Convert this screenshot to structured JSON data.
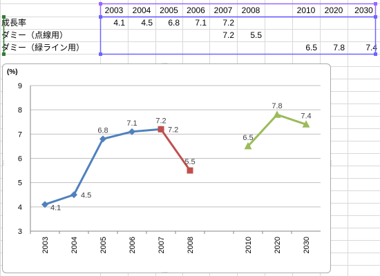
{
  "sheet": {
    "year_headers": [
      "2003",
      "2004",
      "2005",
      "2006",
      "2007",
      "2008",
      "",
      "2010",
      "2020",
      "2030"
    ],
    "rows": [
      {
        "label": "成長率",
        "values": [
          "4.1",
          "4.5",
          "6.8",
          "7.1",
          "7.2",
          "",
          "",
          "",
          "",
          ""
        ]
      },
      {
        "label": "ダミー（点線用）",
        "values": [
          "",
          "",
          "",
          "",
          "7.2",
          "5.5",
          "",
          "",
          "",
          ""
        ]
      },
      {
        "label": "ダミー（緑ライン用）",
        "values": [
          "",
          "",
          "",
          "",
          "",
          "",
          "",
          "6.5",
          "7.8",
          "7.4"
        ]
      }
    ]
  },
  "chart_data": {
    "type": "line",
    "title": "",
    "ylabel": "(%)",
    "ylim": [
      3,
      9
    ],
    "yticks": [
      "3",
      "4",
      "5",
      "6",
      "7",
      "8",
      "9"
    ],
    "categories": [
      "2003",
      "2004",
      "2005",
      "2006",
      "2007",
      "2008",
      "",
      "2010",
      "2020",
      "2030"
    ],
    "grid": true,
    "legend": "none",
    "series": [
      {
        "marker": "diamond",
        "color": "#4f81bd",
        "values": [
          4.1,
          4.5,
          6.8,
          7.1,
          7.2,
          null,
          null,
          null,
          null,
          null
        ]
      },
      {
        "marker": "square",
        "color": "#c0504d",
        "values": [
          null,
          null,
          null,
          null,
          7.2,
          5.5,
          null,
          null,
          null,
          null
        ]
      },
      {
        "marker": "triangle",
        "color": "#9bbb59",
        "values": [
          null,
          null,
          null,
          null,
          null,
          null,
          null,
          6.5,
          7.8,
          7.4
        ]
      }
    ],
    "data_labels": [
      {
        "category_index": 0,
        "text": "4.1",
        "placement": "below-right"
      },
      {
        "category_index": 1,
        "text": "4.5",
        "placement": "right"
      },
      {
        "category_index": 2,
        "text": "6.8",
        "placement": "above"
      },
      {
        "category_index": 3,
        "text": "7.1",
        "placement": "above"
      },
      {
        "category_index": 4,
        "text": "7.2",
        "placement": "above"
      },
      {
        "category_index": 4,
        "text": "7.2",
        "placement": "right"
      },
      {
        "category_index": 5,
        "text": "5.5",
        "placement": "above"
      },
      {
        "category_index": 7,
        "text": "6.5",
        "placement": "above"
      },
      {
        "category_index": 8,
        "text": "7.8",
        "placement": "above"
      },
      {
        "category_index": 9,
        "text": "7.4",
        "placement": "above"
      }
    ]
  },
  "colors": {
    "gridline": "#bfbfbf",
    "selection": "#9966ff",
    "handle": "#6b66ff",
    "cell_border": "#d9d9d9"
  }
}
